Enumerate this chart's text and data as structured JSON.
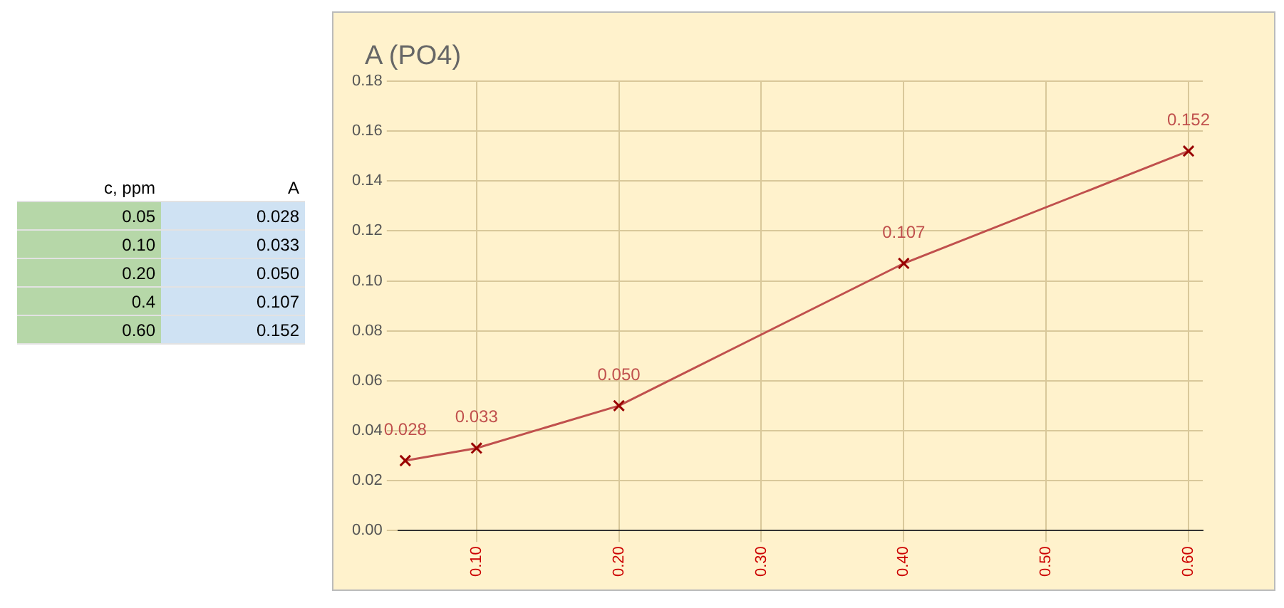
{
  "chart_data": [
    {
      "type": "other",
      "annotations": [
        "c, ppm",
        "A",
        "0.05",
        "0.028",
        "0.10",
        "0.033",
        "0.20",
        "0.050",
        "0.4",
        "0.107",
        "0.60",
        "0.152"
      ]
    },
    {
      "type": "line",
      "title": "A (PO4)",
      "x": [
        0.05,
        0.1,
        0.2,
        0.4,
        0.6
      ],
      "values": [
        0.028,
        0.033,
        0.05,
        0.107,
        0.152
      ],
      "value_labels": [
        "0.028",
        "0.033",
        "0.050",
        "0.107",
        "0.152"
      ],
      "color": "#c0504d",
      "marker": "cross",
      "grid": true,
      "legend": false,
      "xlim": [
        0.045,
        0.61
      ],
      "xticks": [
        {
          "value": 0.1,
          "label": "0.10"
        },
        {
          "value": 0.2,
          "label": "0.20"
        },
        {
          "value": 0.3,
          "label": "0.30"
        },
        {
          "value": 0.4,
          "label": "0.40"
        },
        {
          "value": 0.5,
          "label": "0.50"
        },
        {
          "value": 0.6,
          "label": "0.60"
        }
      ],
      "ylim": [
        0,
        0.18
      ],
      "yticks": [
        {
          "value": 0,
          "label": "0.00"
        },
        {
          "value": 0.02,
          "label": "0.02"
        },
        {
          "value": 0.04,
          "label": "0.04"
        },
        {
          "value": 0.06,
          "label": "0.06"
        },
        {
          "value": 0.08,
          "label": "0.08"
        },
        {
          "value": 0.1,
          "label": "0.10"
        },
        {
          "value": 0.12,
          "label": "0.12"
        },
        {
          "value": 0.14,
          "label": "0.14"
        },
        {
          "value": 0.16,
          "label": "0.16"
        },
        {
          "value": 0.18,
          "label": "0.18"
        }
      ]
    }
  ]
}
